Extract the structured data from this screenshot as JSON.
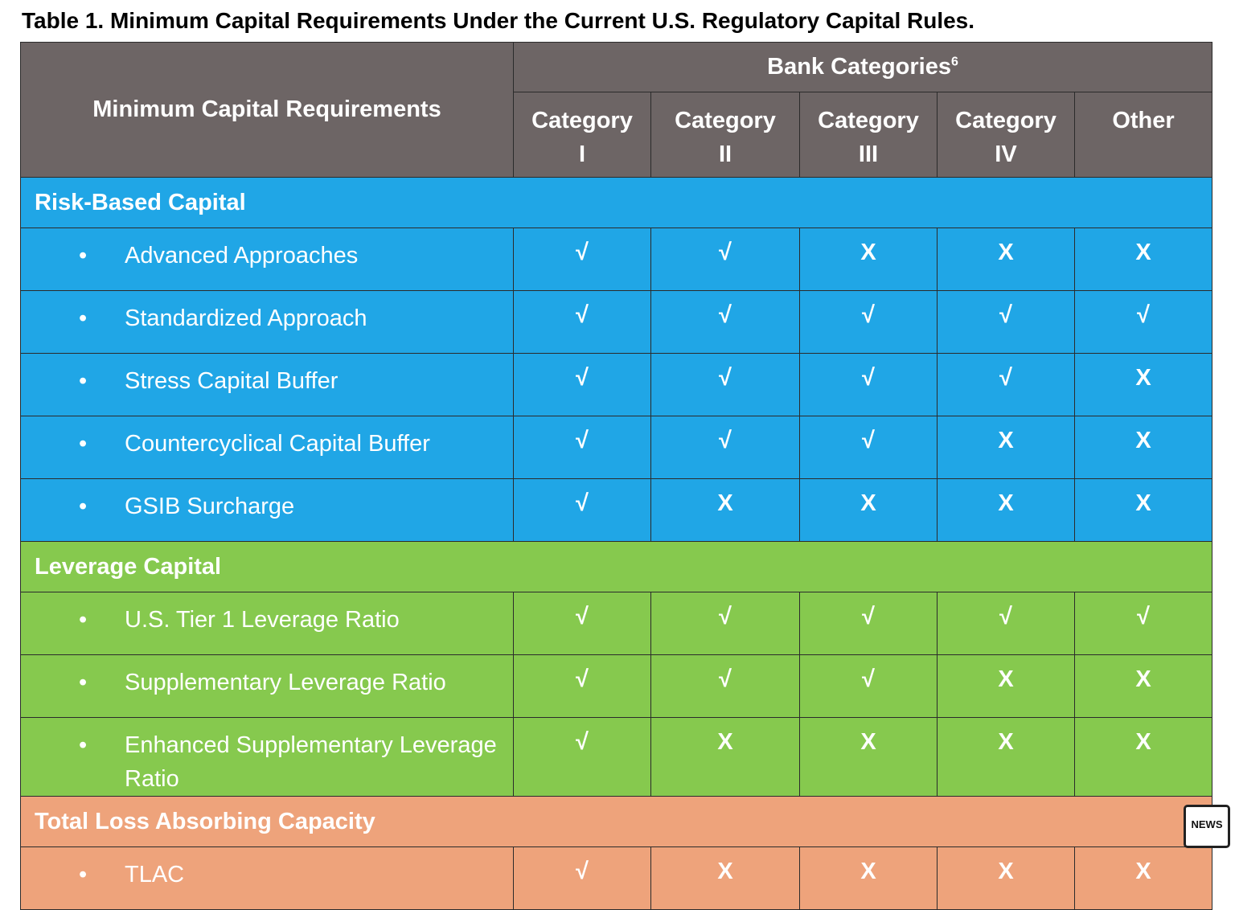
{
  "title": "Table 1.  Minimum Capital Requirements Under the Current U.S. Regulatory Capital Rules.",
  "header": {
    "requirements": "Minimum Capital Requirements",
    "bank_categories": "Bank Categories",
    "footnote": "6",
    "columns": [
      "Category I",
      "Category II",
      "Category III",
      "Category IV",
      "Other"
    ]
  },
  "sections": [
    {
      "name": "Risk-Based Capital",
      "rows": [
        {
          "label": "Advanced Approaches",
          "values": [
            "√",
            "√",
            "X",
            "X",
            "X"
          ]
        },
        {
          "label": "Standardized Approach",
          "values": [
            "√",
            "√",
            "√",
            "√",
            "√"
          ]
        },
        {
          "label": "Stress Capital Buffer",
          "values": [
            "√",
            "√",
            "√",
            "√",
            "X"
          ]
        },
        {
          "label": "Countercyclical Capital Buffer",
          "values": [
            "√",
            "√",
            "√",
            "X",
            "X"
          ]
        },
        {
          "label": "GSIB Surcharge",
          "values": [
            "√",
            "X",
            "X",
            "X",
            "X"
          ]
        }
      ]
    },
    {
      "name": "Leverage Capital",
      "rows": [
        {
          "label": "U.S. Tier 1 Leverage Ratio",
          "values": [
            "√",
            "√",
            "√",
            "√",
            "√"
          ]
        },
        {
          "label": "Supplementary Leverage Ratio",
          "values": [
            "√",
            "√",
            "√",
            "X",
            "X"
          ]
        },
        {
          "label": "Enhanced Supplementary Leverage Ratio",
          "values": [
            "√",
            "X",
            "X",
            "X",
            "X"
          ]
        }
      ]
    },
    {
      "name": "Total Loss Absorbing Capacity",
      "rows": [
        {
          "label": "TLAC",
          "values": [
            "√",
            "X",
            "X",
            "X",
            "X"
          ]
        }
      ]
    }
  ],
  "badge": "NEWS"
}
